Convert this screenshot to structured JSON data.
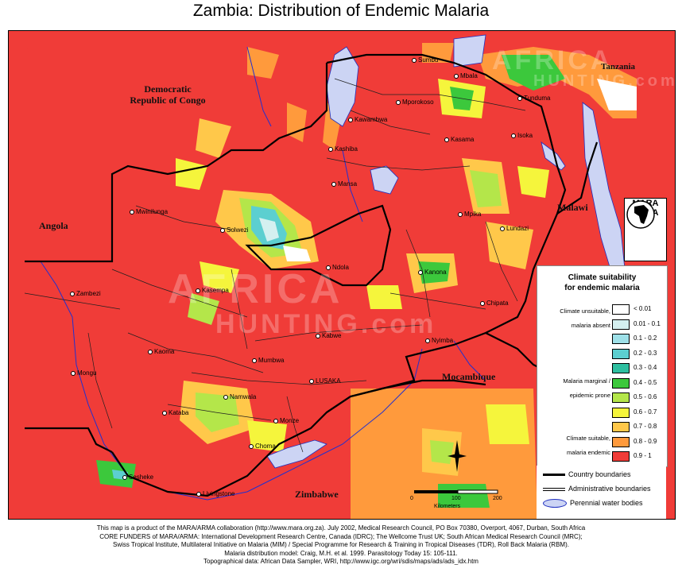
{
  "title": "Zambia: Distribution of Endemic Malaria",
  "countries": {
    "drc": "Democratic\nRepublic of Congo",
    "angola": "Angola",
    "tanzania": "Tanzania",
    "malawi": "Malawi",
    "mocambique": "Mocambique",
    "zimbabwe": "Zimbabwe"
  },
  "towns": {
    "sumbu": "Sumbu",
    "mbala": "Mbala",
    "tunduma": "Tunduma",
    "mporokoso": "Mporokoso",
    "kawambwa": "Kawambwa",
    "kasama": "Kasama",
    "isoka": "Isoka",
    "kashiba": "Kashiba",
    "mansa": "Mansa",
    "mpika": "Mpika",
    "mwinilunga": "Mwinilunga",
    "solwezi": "Solwezi",
    "lundazi": "Lundazi",
    "ndola": "Ndola",
    "kanona": "Kanona",
    "zambezi": "Zambezi",
    "kasempa": "Kasempa",
    "chipata": "Chipata",
    "kabwe": "Kabwe",
    "nyimba": "Nyimba",
    "kaoma": "Kaoma",
    "mumbwa": "Mumbwa",
    "mongu": "Mongu",
    "lusaka": "LUSAKA",
    "namwala": "Namwala",
    "kataba": "Kataba",
    "monze": "Monze",
    "choma": "Choma",
    "sesheke": "Sesheke",
    "livingstone": "Livingstone"
  },
  "legend": {
    "title": "Climate suitability\nfor endemic malaria",
    "groups": {
      "unsuitable_1": "Climate unsuitable,",
      "unsuitable_2": "malaria absent",
      "marginal_1": "Malaria marginal /",
      "marginal_2": "epidemic prone",
      "suitable_1": "Climate suitable,",
      "suitable_2": "malaria endemic"
    },
    "classes": [
      {
        "label": "< 0.01",
        "color": "#ffffff"
      },
      {
        "label": "0.01 - 0.1",
        "color": "#d4f0f0"
      },
      {
        "label": "0.1 - 0.2",
        "color": "#9ee0e8"
      },
      {
        "label": "0.2 - 0.3",
        "color": "#5ccfd0"
      },
      {
        "label": "0.3 - 0.4",
        "color": "#2ebfa0"
      },
      {
        "label": "0.4 - 0.5",
        "color": "#3cc83c"
      },
      {
        "label": "0.5 - 0.6",
        "color": "#b4e64a"
      },
      {
        "label": "0.6 - 0.7",
        "color": "#f5f53c"
      },
      {
        "label": "0.7 - 0.8",
        "color": "#ffc84a"
      },
      {
        "label": "0.8 - 0.9",
        "color": "#ff9a3c"
      },
      {
        "label": "0.9 - 1",
        "color": "#f03c38"
      }
    ]
  },
  "boundary_legend": {
    "country": "Country boundaries",
    "admin": "Administrative boundaries",
    "water": "Perennial water bodies"
  },
  "logo": {
    "top": "MARA",
    "bottom": "ARMA"
  },
  "watermark": {
    "top": "AFRICA",
    "bottom": "HUNTING",
    "suffix": ".com"
  },
  "scale": {
    "ticks": [
      "0",
      "100",
      "200"
    ],
    "unit": "Kilometers"
  },
  "footer": [
    "This map is a product of the MARA/ARMA collaboration (http://www.mara.org.za).  July 2002, Medical Research Council, PO Box 70380, Overport, 4067, Durban, South Africa",
    "CORE FUNDERS of MARA/ARMA: International Development Research Centre, Canada (IDRC); The Wellcome Trust UK; South African Medical Research Council (MRC);",
    "Swiss Tropical Institute, Multilateral Initiative on Malaria (MIM) / Special Programme for Research & Training in Tropical Diseases (TDR), Roll Back Malaria (RBM).",
    "Malaria distribution model: Craig, M.H. et al. 1999.  Parasitology Today 15: 105-111.",
    "Topographical data: African Data Sampler, WRI, http://www.igc.org/wri/sdis/maps/ads/ads_idx.htm"
  ]
}
